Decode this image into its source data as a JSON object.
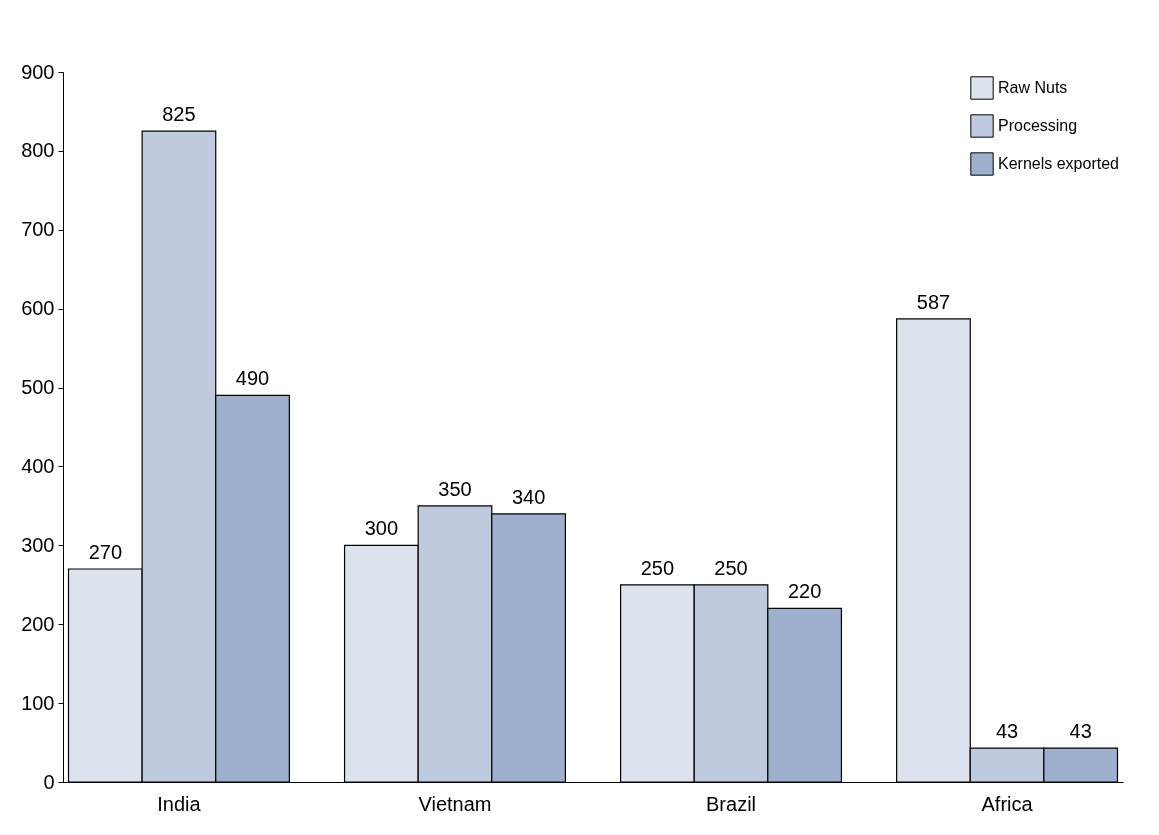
{
  "chart_data": {
    "type": "bar",
    "categories": [
      "India",
      "Vietnam",
      "Brazil",
      "Africa"
    ],
    "series": [
      {
        "name": "Raw Nuts",
        "color": "#dde3ee",
        "values": [
          270,
          300,
          250,
          587
        ]
      },
      {
        "name": "Processing",
        "color": "#c0cadf",
        "values": [
          825,
          350,
          250,
          43
        ]
      },
      {
        "name": "Kernels exported",
        "color": "#9fb0cf",
        "values": [
          490,
          340,
          220,
          43
        ]
      }
    ],
    "ylim": [
      0,
      900
    ],
    "yticks": [
      0,
      100,
      200,
      300,
      400,
      500,
      600,
      700,
      800,
      900
    ],
    "grid": false,
    "legend": "top right",
    "data_labels": true
  }
}
